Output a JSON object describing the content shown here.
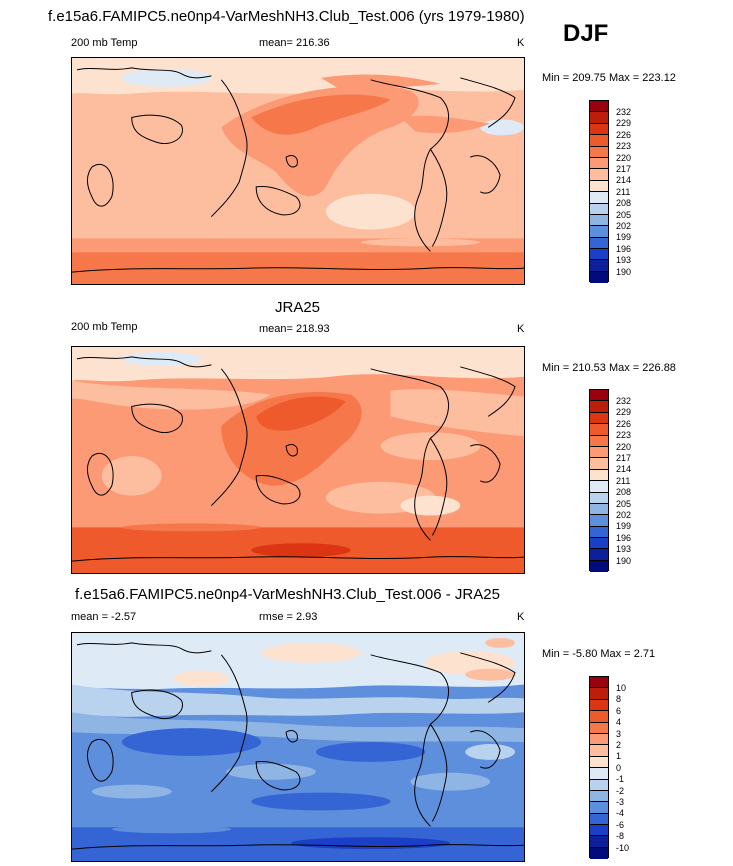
{
  "figure": {
    "title_model": "f.e15a6.FAMIPC5.ne0np4-VarMeshNH3.Club_Test.006 (yrs 1979-1980)",
    "season": "DJF"
  },
  "panels": [
    {
      "title": "",
      "left_label": "200 mb Temp",
      "center_label": "mean= 216.36",
      "units": "K",
      "minmax": "Min = 209.75 Max = 223.12",
      "colorbar": {
        "labels": [
          "232",
          "229",
          "226",
          "223",
          "220",
          "217",
          "214",
          "211",
          "208",
          "205",
          "202",
          "199",
          "196",
          "193",
          "190"
        ],
        "colors": [
          "#99000d",
          "#bd1e0c",
          "#dc3513",
          "#ee5a2c",
          "#f6784a",
          "#fb9a74",
          "#fdbd9f",
          "#fee2d0",
          "#deebf7",
          "#b9d2ee",
          "#8fb5e5",
          "#5e8fdd",
          "#3565d4",
          "#1b3fc6",
          "#0e1f9a",
          "#000c7a"
        ]
      }
    },
    {
      "title": "JRA25",
      "left_label": "200 mb Temp",
      "center_label": "mean= 218.93",
      "units": "K",
      "minmax": "Min = 210.53 Max = 226.88",
      "colorbar": {
        "labels": [
          "232",
          "229",
          "226",
          "223",
          "220",
          "217",
          "214",
          "211",
          "208",
          "205",
          "202",
          "199",
          "196",
          "193",
          "190"
        ],
        "colors": [
          "#99000d",
          "#bd1e0c",
          "#dc3513",
          "#ee5a2c",
          "#f6784a",
          "#fb9a74",
          "#fdbd9f",
          "#fee2d0",
          "#deebf7",
          "#b9d2ee",
          "#8fb5e5",
          "#5e8fdd",
          "#3565d4",
          "#1b3fc6",
          "#0e1f9a",
          "#000c7a"
        ]
      }
    },
    {
      "title": "f.e15a6.FAMIPC5.ne0np4-VarMeshNH3.Club_Test.006 - JRA25",
      "left_label": "mean =  -2.57",
      "center_label": "rmse =   2.93",
      "units": "K",
      "minmax": "Min =  -5.80 Max =   2.71",
      "colorbar": {
        "labels": [
          "10",
          "8",
          "6",
          "4",
          "3",
          "2",
          "1",
          "0",
          "-1",
          "-2",
          "-3",
          "-4",
          "-6",
          "-8",
          "-10"
        ],
        "colors": [
          "#99000d",
          "#bd1e0c",
          "#dc3513",
          "#ee5a2c",
          "#f6784a",
          "#fb9a74",
          "#fdbd9f",
          "#fee2d0",
          "#deebf7",
          "#b9d2ee",
          "#8fb5e5",
          "#5e8fdd",
          "#3565d4",
          "#1b3fc6",
          "#0e1f9a",
          "#000c7a"
        ]
      }
    }
  ]
}
